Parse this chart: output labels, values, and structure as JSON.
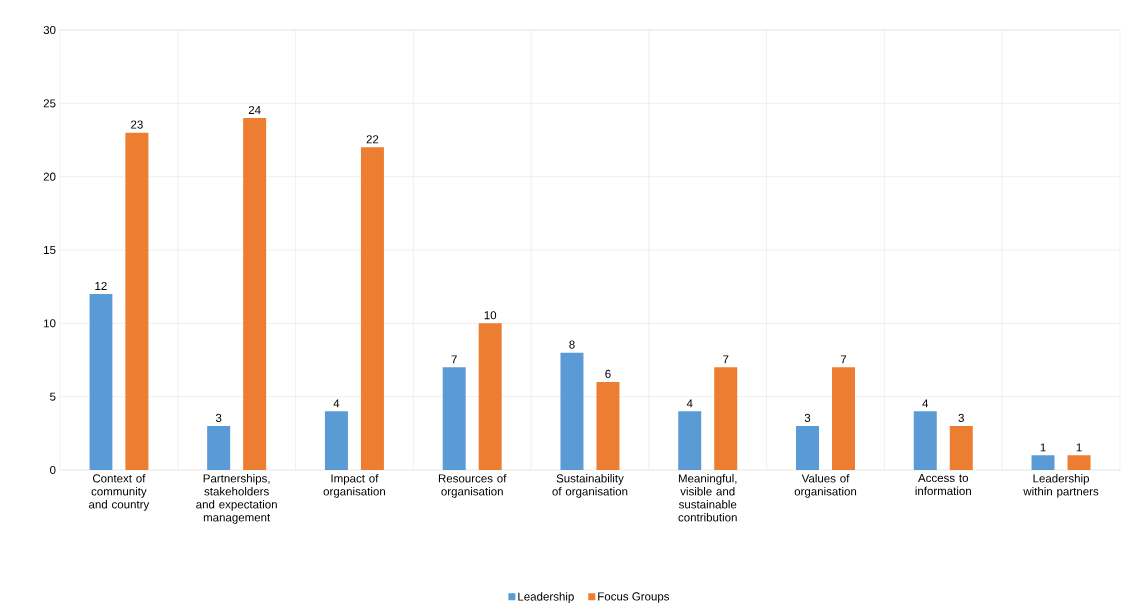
{
  "chart_data": {
    "type": "bar",
    "categories": [
      "Context of community and country",
      "Partnerships, stakeholders and expectation management",
      "Impact of organisation",
      "Resources of organisation",
      "Sustainability of organisation",
      "Meaningful, visible and sustainable contribution",
      "Values of organisation",
      "Access to information",
      "Leadership within partners"
    ],
    "series": [
      {
        "name": "Leadership",
        "color": "#5b9bd5",
        "values": [
          12,
          3,
          4,
          7,
          8,
          4,
          3,
          4,
          1
        ]
      },
      {
        "name": "Focus Groups",
        "color": "#ed7d31",
        "values": [
          23,
          24,
          22,
          10,
          6,
          7,
          7,
          3,
          1
        ]
      }
    ],
    "ylim": [
      0,
      30
    ],
    "yticks": [
      0,
      5,
      10,
      15,
      20,
      25,
      30
    ],
    "grid": true,
    "legend": "bottom",
    "data_labels": true
  }
}
